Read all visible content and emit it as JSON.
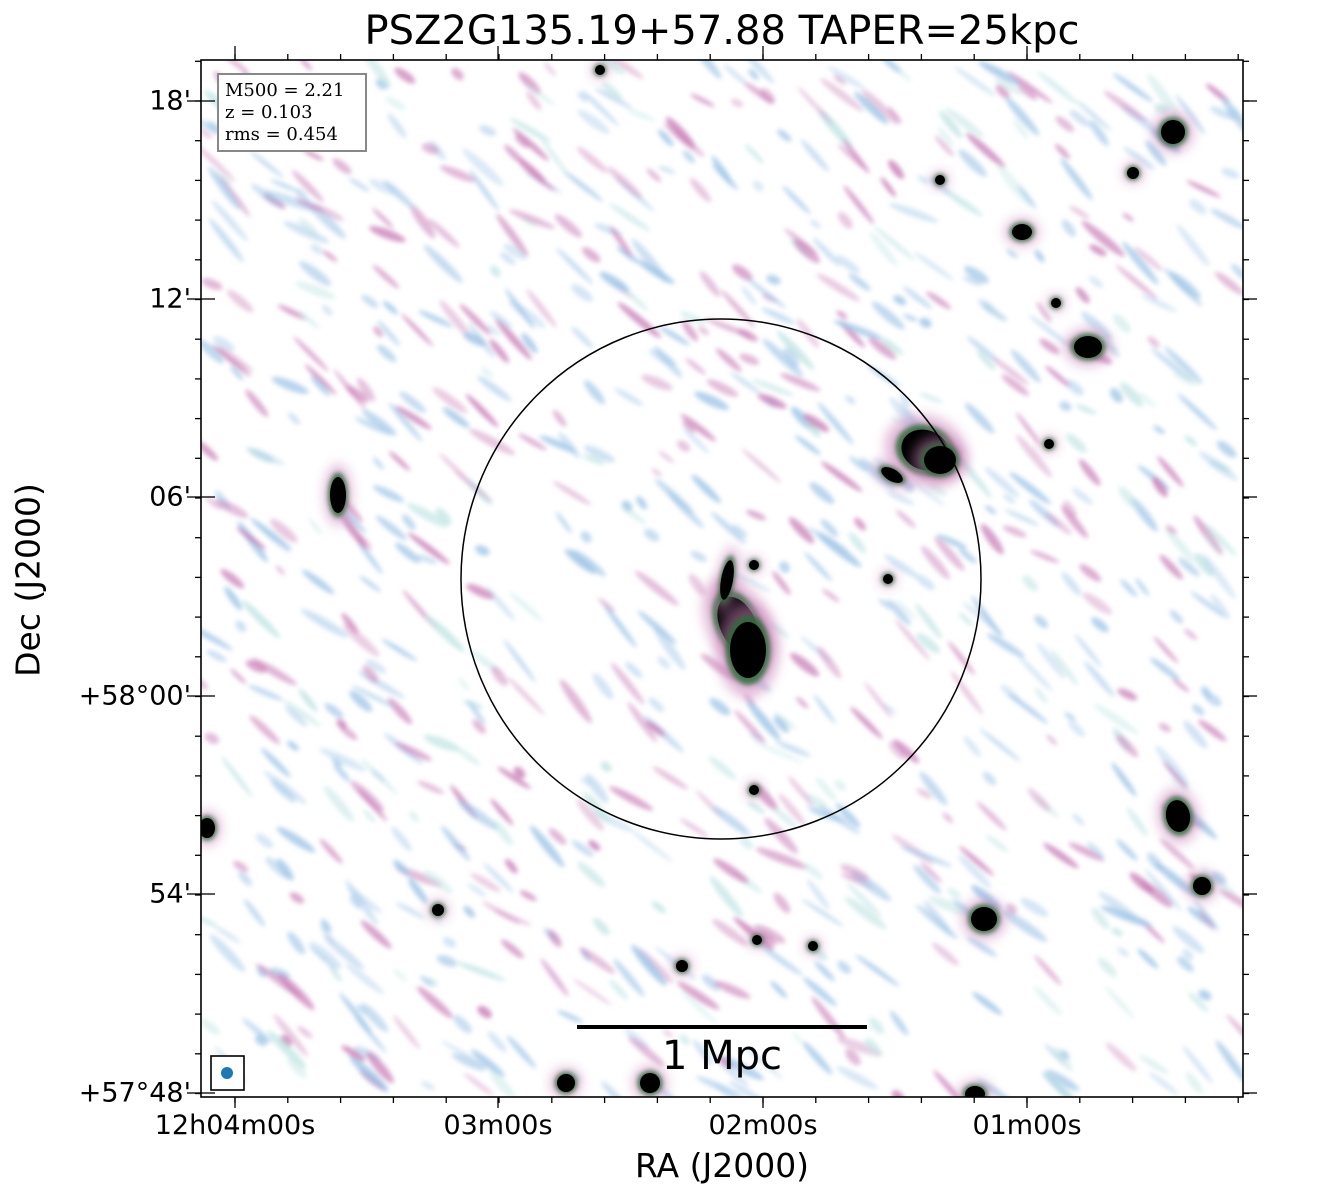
{
  "title": "PSZ2G135.19+57.88 TAPER=25kpc",
  "xlabel": "RA (J2000)",
  "ylabel": "Dec (J2000)",
  "x_ticks": [
    "12h04m00s",
    "03m00s",
    "02m00s",
    "01m00s"
  ],
  "y_ticks": [
    "18'",
    "12'",
    "06'",
    "+58°00'",
    "54'",
    "+57°48'"
  ],
  "info": {
    "m500": "M500 = 2.21",
    "z": "z = 0.103",
    "rms": "rms = 0.454"
  },
  "scalebar_label": "1 Mpc",
  "colors": {
    "source_core": "#000000",
    "green": "#2f6b3a",
    "magenta": "#c77bb5",
    "blue": "#9cc3e6",
    "cyan": "#bfe3e3",
    "beam": "#1f77b4"
  }
}
